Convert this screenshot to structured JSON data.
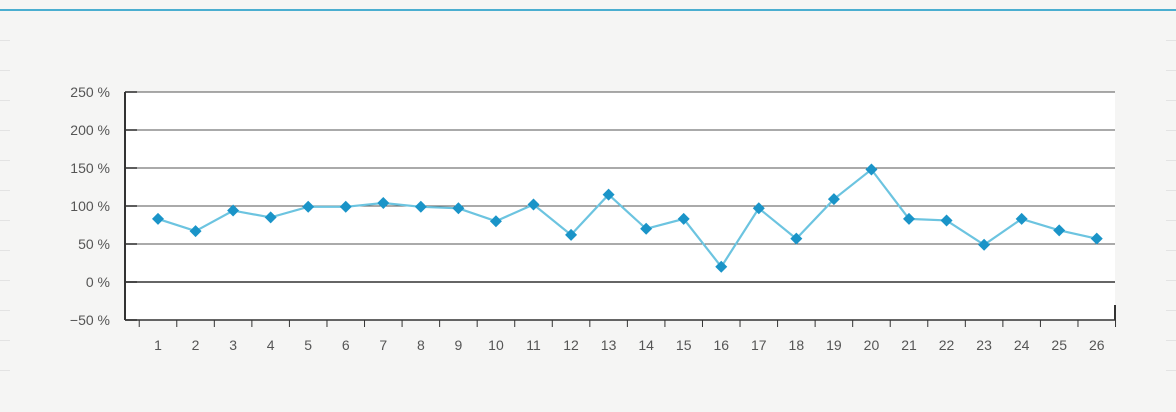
{
  "colors": {
    "accent": "#4aaed0",
    "line": "#6cc4e0",
    "marker": "#1a94c8",
    "axis": "#333333",
    "grid": "#555555"
  },
  "chart_data": {
    "type": "line",
    "title": "",
    "xlabel": "",
    "ylabel": "",
    "x": [
      1,
      2,
      3,
      4,
      5,
      6,
      7,
      8,
      9,
      10,
      11,
      12,
      13,
      14,
      15,
      16,
      17,
      18,
      19,
      20,
      21,
      22,
      23,
      24,
      25,
      26
    ],
    "series": [
      {
        "values": [
          83,
          67,
          94,
          85,
          99,
          99,
          104,
          99,
          97,
          80,
          102,
          62,
          115,
          70,
          83,
          20,
          97,
          57,
          109,
          148,
          83,
          81,
          49,
          83,
          68,
          57
        ]
      }
    ],
    "ylim": [
      -50,
      250
    ],
    "yticks": [
      -50,
      0,
      50,
      100,
      150,
      200,
      250
    ],
    "ytick_labels": [
      "−50 %",
      "0 %",
      "50 %",
      "100 %",
      "150 %",
      "200 %",
      "250 %"
    ],
    "xtick_labels": [
      "1",
      "2",
      "3",
      "4",
      "5",
      "6",
      "7",
      "8",
      "9",
      "10",
      "11",
      "12",
      "13",
      "14",
      "15",
      "16",
      "17",
      "18",
      "19",
      "20",
      "21",
      "22",
      "23",
      "24",
      "25",
      "26"
    ],
    "grid": true,
    "legend": "none"
  }
}
